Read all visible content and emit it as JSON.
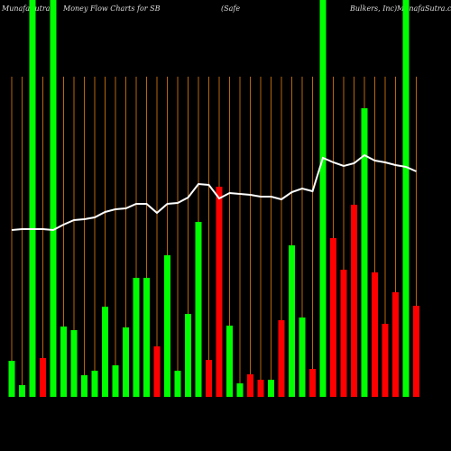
{
  "chart_data": {
    "type": "bar",
    "title_parts": [
      "MunafaSutra",
      "Money Flow  Charts for SB",
      "(Safe",
      "Bulkers, Inc)",
      "MunafaSutra.com"
    ],
    "categories": [
      null,
      null,
      null,
      null,
      null,
      null,
      null,
      null,
      null,
      null,
      null,
      null,
      null,
      null,
      null,
      null,
      null,
      null,
      null,
      null,
      null,
      null,
      null,
      null,
      null,
      null,
      null,
      null,
      null,
      null,
      null,
      null,
      null,
      null,
      null,
      null,
      null,
      null,
      null,
      null
    ],
    "values": [
      40,
      13,
      440,
      43,
      440,
      78,
      74,
      24,
      29,
      100,
      35,
      77,
      132,
      132,
      56,
      157,
      29,
      92,
      194,
      41,
      233,
      79,
      15,
      25,
      19,
      19,
      85,
      168,
      88,
      31,
      440,
      176,
      141,
      213,
      320,
      138,
      81,
      116,
      440,
      101
    ],
    "colors": [
      "#00ff00",
      "#00ff00",
      "#00ff00",
      "#ff0000",
      "#00ff00",
      "#00ff00",
      "#00ff00",
      "#00ff00",
      "#00ff00",
      "#00ff00",
      "#00ff00",
      "#00ff00",
      "#00ff00",
      "#00ff00",
      "#ff0000",
      "#00ff00",
      "#00ff00",
      "#00ff00",
      "#00ff00",
      "#ff0000",
      "#ff0000",
      "#00ff00",
      "#00ff00",
      "#ff0000",
      "#ff0000",
      "#00ff00",
      "#ff0000",
      "#00ff00",
      "#00ff00",
      "#ff0000",
      "#00ff00",
      "#ff0000",
      "#ff0000",
      "#ff0000",
      "#00ff00",
      "#ff0000",
      "#ff0000",
      "#ff0000",
      "#00ff00",
      "#ff0000"
    ],
    "line": {
      "color": "#ffffff",
      "values": [
        185,
        186,
        186,
        186,
        185,
        191,
        196,
        197,
        199,
        205,
        208,
        209,
        214,
        214,
        204,
        214,
        215,
        221,
        236,
        235,
        220,
        226,
        225,
        224,
        222,
        222,
        219,
        227,
        231,
        228,
        265,
        260,
        256,
        259,
        268,
        262,
        260,
        257,
        255,
        250
      ]
    },
    "ylim": [
      0,
      440
    ],
    "gridline_color": "#b8660b"
  }
}
